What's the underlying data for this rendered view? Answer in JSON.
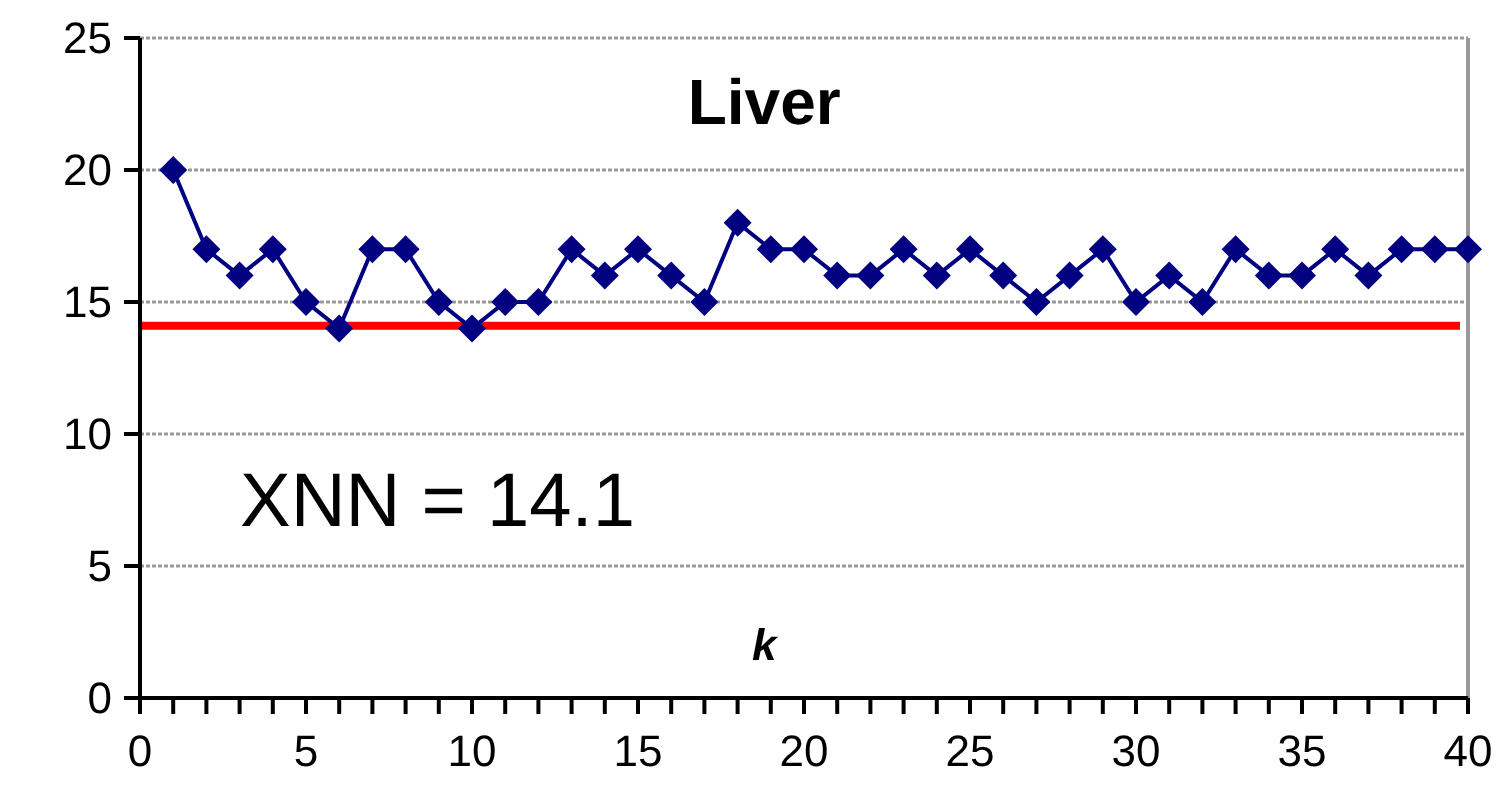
{
  "chart_data": {
    "type": "line",
    "title": "Liver",
    "xlabel": "k",
    "x": [
      1,
      2,
      3,
      4,
      5,
      6,
      7,
      8,
      9,
      10,
      11,
      12,
      13,
      14,
      15,
      16,
      17,
      18,
      19,
      20,
      21,
      22,
      23,
      24,
      25,
      26,
      27,
      28,
      29,
      30,
      31,
      32,
      33,
      34,
      35,
      36,
      37,
      38,
      39,
      40
    ],
    "series": [
      {
        "color": "#000080",
        "values": [
          20,
          17,
          16,
          17,
          15,
          14,
          17,
          17,
          15,
          14,
          15,
          15,
          17,
          16,
          17,
          16,
          15,
          18,
          17,
          17,
          16,
          16,
          17,
          16,
          17,
          16,
          15,
          16,
          17,
          15,
          16,
          15,
          17,
          16,
          16,
          17,
          16,
          17,
          17,
          17
        ]
      }
    ],
    "marker": "diamond",
    "grid": "y",
    "ref_lines": [
      {
        "axis": "y",
        "value": 14.1,
        "color": "#ff0000"
      }
    ],
    "annotations": [
      "XNN = 14.1"
    ],
    "xlim": [
      0,
      40
    ],
    "ylim": [
      0,
      25
    ],
    "yticks": [
      0,
      5,
      10,
      15,
      20,
      25
    ],
    "xticks": [
      0,
      {
        "value": 1,
        "label": null
      },
      {
        "value": 2,
        "label": null
      },
      {
        "value": 3,
        "label": null
      },
      {
        "value": 4,
        "label": null
      },
      5,
      {
        "value": 6,
        "label": null
      },
      {
        "value": 7,
        "label": null
      },
      {
        "value": 8,
        "label": null
      },
      {
        "value": 9,
        "label": null
      },
      10,
      {
        "value": 11,
        "label": null
      },
      {
        "value": 12,
        "label": null
      },
      {
        "value": 13,
        "label": null
      },
      {
        "value": 14,
        "label": null
      },
      15,
      {
        "value": 16,
        "label": null
      },
      {
        "value": 17,
        "label": null
      },
      {
        "value": 18,
        "label": null
      },
      {
        "value": 19,
        "label": null
      },
      20,
      {
        "value": 21,
        "label": null
      },
      {
        "value": 22,
        "label": null
      },
      {
        "value": 23,
        "label": null
      },
      {
        "value": 24,
        "label": null
      },
      25,
      {
        "value": 26,
        "label": null
      },
      {
        "value": 27,
        "label": null
      },
      {
        "value": 28,
        "label": null
      },
      {
        "value": 29,
        "label": null
      },
      30,
      {
        "value": 31,
        "label": null
      },
      {
        "value": 32,
        "label": null
      },
      {
        "value": 33,
        "label": null
      },
      {
        "value": 34,
        "label": null
      },
      35,
      {
        "value": 36,
        "label": null
      },
      {
        "value": 37,
        "label": null
      },
      {
        "value": 38,
        "label": null
      },
      {
        "value": 39,
        "label": null
      },
      40
    ]
  }
}
